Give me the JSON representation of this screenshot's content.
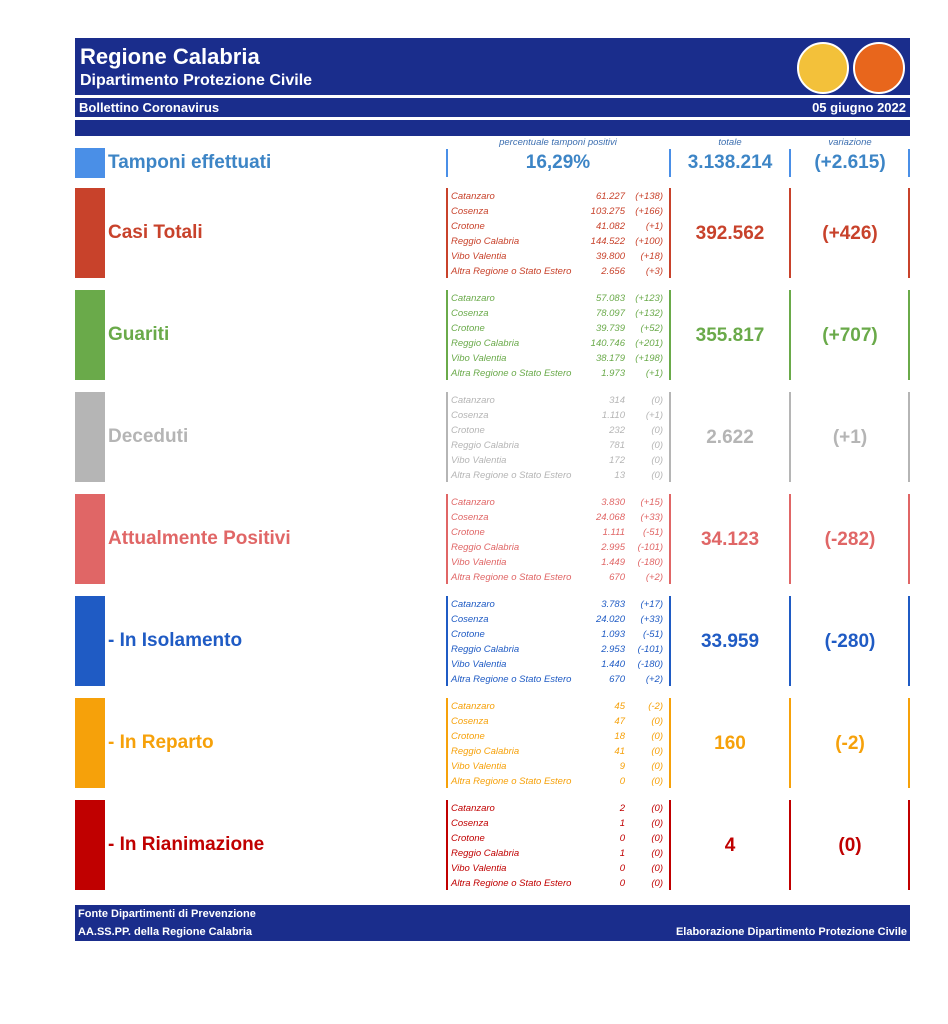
{
  "header": {
    "title": "Regione Calabria",
    "subtitle": "Dipartimento Protezione Civile",
    "bulletin": "Bollettino Coronavirus",
    "date": "05 giugno 2022"
  },
  "columns": {
    "percent": "percentuale tamponi positivi",
    "total": "totale",
    "variation": "variazione"
  },
  "tamponi": {
    "label": "Tamponi effettuati",
    "percent": "16,29%",
    "total": "3.138.214",
    "variation": "(+2.615)",
    "color": "#4a8fe7",
    "text_color": "#3d85c6"
  },
  "sections": [
    {
      "label": "Casi Totali",
      "color": "#c8422b",
      "total": "392.562",
      "variation": "(+426)",
      "rows": [
        [
          "Catanzaro",
          "61.227",
          "(+138)"
        ],
        [
          "Cosenza",
          "103.275",
          "(+166)"
        ],
        [
          "Crotone",
          "41.082",
          "(+1)"
        ],
        [
          "Reggio Calabria",
          "144.522",
          "(+100)"
        ],
        [
          "Vibo Valentia",
          "39.800",
          "(+18)"
        ],
        [
          "Altra Regione o Stato Estero",
          "2.656",
          "(+3)"
        ]
      ]
    },
    {
      "label": "Guariti",
      "color": "#6aaa4a",
      "total": "355.817",
      "variation": "(+707)",
      "rows": [
        [
          "Catanzaro",
          "57.083",
          "(+123)"
        ],
        [
          "Cosenza",
          "78.097",
          "(+132)"
        ],
        [
          "Crotone",
          "39.739",
          "(+52)"
        ],
        [
          "Reggio Calabria",
          "140.746",
          "(+201)"
        ],
        [
          "Vibo Valentia",
          "38.179",
          "(+198)"
        ],
        [
          "Altra Regione o Stato Estero",
          "1.973",
          "(+1)"
        ]
      ]
    },
    {
      "label": "Deceduti",
      "color": "#b5b5b5",
      "total": "2.622",
      "variation": "(+1)",
      "rows": [
        [
          "Catanzaro",
          "314",
          "(0)"
        ],
        [
          "Cosenza",
          "1.110",
          "(+1)"
        ],
        [
          "Crotone",
          "232",
          "(0)"
        ],
        [
          "Reggio Calabria",
          "781",
          "(0)"
        ],
        [
          "Vibo Valentia",
          "172",
          "(0)"
        ],
        [
          "Altra Regione o Stato Estero",
          "13",
          "(0)"
        ]
      ]
    },
    {
      "label": "Attualmente Positivi",
      "color": "#e06666",
      "total": "34.123",
      "variation": "(-282)",
      "rows": [
        [
          "Catanzaro",
          "3.830",
          "(+15)"
        ],
        [
          "Cosenza",
          "24.068",
          "(+33)"
        ],
        [
          "Crotone",
          "1.111",
          "(-51)"
        ],
        [
          "Reggio Calabria",
          "2.995",
          "(-101)"
        ],
        [
          "Vibo Valentia",
          "1.449",
          "(-180)"
        ],
        [
          "Altra Regione o Stato Estero",
          "670",
          "(+2)"
        ]
      ]
    },
    {
      "label": "- In Isolamento",
      "color": "#1f5bc4",
      "total": "33.959",
      "variation": "(-280)",
      "rows": [
        [
          "Catanzaro",
          "3.783",
          "(+17)"
        ],
        [
          "Cosenza",
          "24.020",
          "(+33)"
        ],
        [
          "Crotone",
          "1.093",
          "(-51)"
        ],
        [
          "Reggio Calabria",
          "2.953",
          "(-101)"
        ],
        [
          "Vibo Valentia",
          "1.440",
          "(-180)"
        ],
        [
          "Altra Regione o Stato Estero",
          "670",
          "(+2)"
        ]
      ]
    },
    {
      "label": "- In Reparto",
      "color": "#f6a10a",
      "total": "160",
      "variation": "(-2)",
      "rows": [
        [
          "Catanzaro",
          "45",
          "(-2)"
        ],
        [
          "Cosenza",
          "47",
          "(0)"
        ],
        [
          "Crotone",
          "18",
          "(0)"
        ],
        [
          "Reggio Calabria",
          "41",
          "(0)"
        ],
        [
          "Vibo Valentia",
          "9",
          "(0)"
        ],
        [
          "Altra Regione o Stato Estero",
          "0",
          "(0)"
        ]
      ]
    },
    {
      "label": "- In Rianimazione",
      "color": "#c00000",
      "total": "4",
      "variation": "(0)",
      "rows": [
        [
          "Catanzaro",
          "2",
          "(0)"
        ],
        [
          "Cosenza",
          "1",
          "(0)"
        ],
        [
          "Crotone",
          "0",
          "(0)"
        ],
        [
          "Reggio Calabria",
          "1",
          "(0)"
        ],
        [
          "Vibo Valentia",
          "0",
          "(0)"
        ],
        [
          "Altra Regione o Stato Estero",
          "0",
          "(0)"
        ]
      ]
    }
  ],
  "footer": {
    "source_1": "Fonte Dipartimenti di Prevenzione",
    "source_2": "AA.SS.PP.  della Regione Calabria",
    "credit": "Elaborazione Dipartimento Protezione Civile"
  }
}
